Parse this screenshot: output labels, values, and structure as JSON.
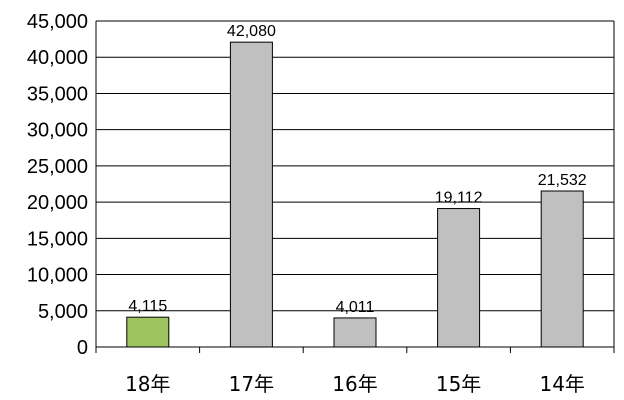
{
  "chart_data": {
    "type": "bar",
    "categories": [
      "18年",
      "17年",
      "16年",
      "15年",
      "14年"
    ],
    "values": [
      4115,
      42080,
      4011,
      19112,
      21532
    ],
    "data_labels": [
      "4,115",
      "42,080",
      "4,011",
      "19,112",
      "21,532"
    ],
    "bar_colors": [
      "#9DC45F",
      "#C0C0C0",
      "#C0C0C0",
      "#C0C0C0",
      "#C0C0C0"
    ],
    "ylim": [
      0,
      45000
    ],
    "yticks": [
      0,
      5000,
      10000,
      15000,
      20000,
      25000,
      30000,
      35000,
      40000,
      45000
    ],
    "ytick_labels": [
      "0",
      "5,000",
      "10,000",
      "15,000",
      "20,000",
      "25,000",
      "30,000",
      "35,000",
      "40,000",
      "45,000"
    ],
    "grid": true,
    "legend": "none"
  }
}
